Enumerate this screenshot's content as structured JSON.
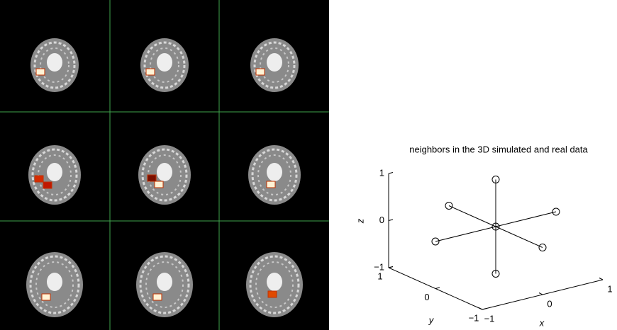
{
  "chart_data": {
    "type": "scatter3d",
    "title": "neighbors in the 3D simulated and real data",
    "xlabel": "x",
    "ylabel": "y",
    "zlabel": "z",
    "x": [
      0,
      0,
      0,
      1,
      -1,
      0,
      0
    ],
    "y": [
      0,
      0,
      0,
      0,
      0,
      1,
      -1
    ],
    "z": [
      0,
      1,
      -1,
      0,
      0,
      0,
      0
    ],
    "xlim": [
      -1,
      1
    ],
    "ylim": [
      -1,
      1
    ],
    "zlim": [
      -1,
      1
    ],
    "xticks": [
      {
        "value": -1,
        "label": "−1"
      },
      0,
      1
    ],
    "yticks": [
      {
        "value": -1,
        "label": "−1"
      },
      0,
      1
    ],
    "zticks": [
      {
        "value": -1,
        "label": "−1"
      },
      0,
      1
    ],
    "color": "#000000"
  }
}
